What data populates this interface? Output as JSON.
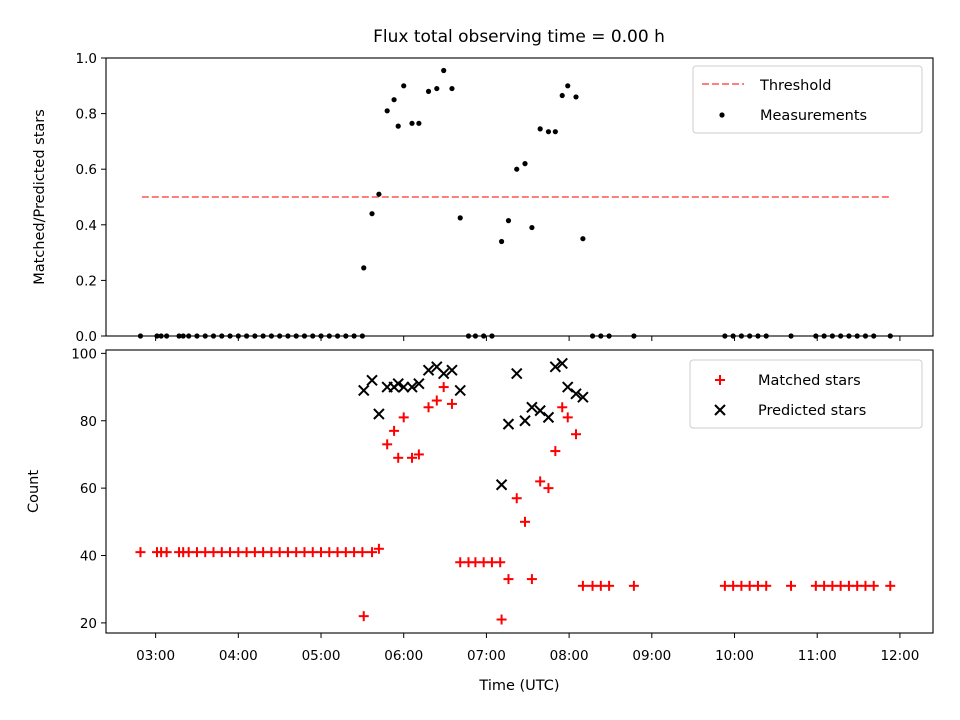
{
  "title": "Flux total observing time = 0.00 h",
  "chart_data": [
    {
      "type": "scatter",
      "ylabel": "Matched/Predicted stars",
      "ylim": [
        0,
        1
      ],
      "yticks": [
        "0.0",
        "0.2",
        "0.4",
        "0.6",
        "0.8",
        "1.0"
      ],
      "threshold": {
        "name": "Threshold",
        "value": 0.5,
        "color": "#ff7f7f",
        "x_range": [
          "02:50",
          "11:53"
        ]
      },
      "legend": [
        "Threshold",
        "Measurements"
      ],
      "legend_position": "upper right",
      "series": [
        {
          "name": "Measurements",
          "color": "#000000",
          "points": [
            [
              "02:49",
              0
            ],
            [
              "03:01",
              0
            ],
            [
              "03:04",
              0
            ],
            [
              "03:08",
              0
            ],
            [
              "03:17",
              0
            ],
            [
              "03:20",
              0
            ],
            [
              "03:24",
              0
            ],
            [
              "03:30",
              0
            ],
            [
              "03:36",
              0
            ],
            [
              "03:42",
              0
            ],
            [
              "03:48",
              0
            ],
            [
              "03:54",
              0
            ],
            [
              "04:00",
              0
            ],
            [
              "04:06",
              0
            ],
            [
              "04:12",
              0
            ],
            [
              "04:18",
              0
            ],
            [
              "04:24",
              0
            ],
            [
              "04:30",
              0
            ],
            [
              "04:36",
              0
            ],
            [
              "04:42",
              0
            ],
            [
              "04:48",
              0
            ],
            [
              "04:54",
              0
            ],
            [
              "05:00",
              0
            ],
            [
              "05:06",
              0
            ],
            [
              "05:12",
              0
            ],
            [
              "05:18",
              0
            ],
            [
              "05:24",
              0
            ],
            [
              "05:30",
              0
            ],
            [
              "05:31",
              0.245
            ],
            [
              "05:37",
              0.44
            ],
            [
              "05:42",
              0.51
            ],
            [
              "05:48",
              0.81
            ],
            [
              "05:53",
              0.85
            ],
            [
              "05:56",
              0.755
            ],
            [
              "06:00",
              0.9
            ],
            [
              "06:06",
              0.765
            ],
            [
              "06:11",
              0.765
            ],
            [
              "06:18",
              0.88
            ],
            [
              "06:24",
              0.89
            ],
            [
              "06:29",
              0.955
            ],
            [
              "06:35",
              0.89
            ],
            [
              "06:41",
              0.425
            ],
            [
              "06:47",
              0
            ],
            [
              "06:52",
              0
            ],
            [
              "06:58",
              0
            ],
            [
              "07:04",
              0
            ],
            [
              "07:11",
              0.34
            ],
            [
              "07:16",
              0.415
            ],
            [
              "07:22",
              0.6
            ],
            [
              "07:28",
              0.62
            ],
            [
              "07:33",
              0.39
            ],
            [
              "07:39",
              0.745
            ],
            [
              "07:45",
              0.735
            ],
            [
              "07:50",
              0.735
            ],
            [
              "07:55",
              0.865
            ],
            [
              "07:59",
              0.9
            ],
            [
              "08:05",
              0.86
            ],
            [
              "08:10",
              0.35
            ],
            [
              "08:17",
              0
            ],
            [
              "08:23",
              0
            ],
            [
              "08:29",
              0
            ],
            [
              "08:47",
              0
            ],
            [
              "09:53",
              0
            ],
            [
              "09:59",
              0
            ],
            [
              "10:05",
              0
            ],
            [
              "10:11",
              0
            ],
            [
              "10:17",
              0
            ],
            [
              "10:23",
              0
            ],
            [
              "10:41",
              0
            ],
            [
              "10:59",
              0
            ],
            [
              "11:05",
              0
            ],
            [
              "11:11",
              0
            ],
            [
              "11:17",
              0
            ],
            [
              "11:23",
              0
            ],
            [
              "11:29",
              0
            ],
            [
              "11:35",
              0
            ],
            [
              "11:41",
              0
            ],
            [
              "11:53",
              0
            ]
          ]
        }
      ]
    },
    {
      "type": "scatter",
      "xlabel": "Time (UTC)",
      "ylabel": "Count",
      "ylim": [
        17,
        101
      ],
      "yticks": [
        "20",
        "40",
        "60",
        "80",
        "100"
      ],
      "xticks": [
        "03:00",
        "04:00",
        "05:00",
        "06:00",
        "07:00",
        "08:00",
        "09:00",
        "10:00",
        "11:00",
        "12:00"
      ],
      "xlim": [
        "02:24",
        "12:24"
      ],
      "legend": [
        "Matched stars",
        "Predicted stars"
      ],
      "legend_position": "upper right",
      "series": [
        {
          "name": "Matched stars",
          "color": "#ff0000",
          "marker": "+",
          "points": [
            [
              "02:49",
              41
            ],
            [
              "03:01",
              41
            ],
            [
              "03:04",
              41
            ],
            [
              "03:08",
              41
            ],
            [
              "03:17",
              41
            ],
            [
              "03:20",
              41
            ],
            [
              "03:24",
              41
            ],
            [
              "03:30",
              41
            ],
            [
              "03:36",
              41
            ],
            [
              "03:42",
              41
            ],
            [
              "03:48",
              41
            ],
            [
              "03:54",
              41
            ],
            [
              "04:00",
              41
            ],
            [
              "04:06",
              41
            ],
            [
              "04:12",
              41
            ],
            [
              "04:18",
              41
            ],
            [
              "04:24",
              41
            ],
            [
              "04:30",
              41
            ],
            [
              "04:36",
              41
            ],
            [
              "04:42",
              41
            ],
            [
              "04:48",
              41
            ],
            [
              "04:54",
              41
            ],
            [
              "05:00",
              41
            ],
            [
              "05:06",
              41
            ],
            [
              "05:12",
              41
            ],
            [
              "05:18",
              41
            ],
            [
              "05:24",
              41
            ],
            [
              "05:30",
              41
            ],
            [
              "05:31",
              22
            ],
            [
              "05:37",
              41
            ],
            [
              "05:42",
              42
            ],
            [
              "05:48",
              73
            ],
            [
              "05:53",
              77
            ],
            [
              "05:56",
              69
            ],
            [
              "06:00",
              81
            ],
            [
              "06:06",
              69
            ],
            [
              "06:11",
              70
            ],
            [
              "06:18",
              84
            ],
            [
              "06:24",
              86
            ],
            [
              "06:29",
              90
            ],
            [
              "06:35",
              85
            ],
            [
              "06:41",
              38
            ],
            [
              "06:47",
              38
            ],
            [
              "06:52",
              38
            ],
            [
              "06:58",
              38
            ],
            [
              "07:04",
              38
            ],
            [
              "07:10",
              38
            ],
            [
              "07:11",
              21
            ],
            [
              "07:16",
              33
            ],
            [
              "07:22",
              57
            ],
            [
              "07:28",
              50
            ],
            [
              "07:33",
              33
            ],
            [
              "07:39",
              62
            ],
            [
              "07:45",
              60
            ],
            [
              "07:50",
              71
            ],
            [
              "07:55",
              84
            ],
            [
              "07:59",
              81
            ],
            [
              "08:05",
              76
            ],
            [
              "08:10",
              31
            ],
            [
              "08:17",
              31
            ],
            [
              "08:23",
              31
            ],
            [
              "08:29",
              31
            ],
            [
              "08:47",
              31
            ],
            [
              "09:53",
              31
            ],
            [
              "09:59",
              31
            ],
            [
              "10:05",
              31
            ],
            [
              "10:11",
              31
            ],
            [
              "10:17",
              31
            ],
            [
              "10:23",
              31
            ],
            [
              "10:41",
              31
            ],
            [
              "10:59",
              31
            ],
            [
              "11:05",
              31
            ],
            [
              "11:11",
              31
            ],
            [
              "11:17",
              31
            ],
            [
              "11:23",
              31
            ],
            [
              "11:29",
              31
            ],
            [
              "11:35",
              31
            ],
            [
              "11:41",
              31
            ],
            [
              "11:53",
              31
            ]
          ]
        },
        {
          "name": "Predicted stars",
          "color": "#000000",
          "marker": "x",
          "points": [
            [
              "05:31",
              89
            ],
            [
              "05:37",
              92
            ],
            [
              "05:42",
              82
            ],
            [
              "05:48",
              90
            ],
            [
              "05:53",
              90
            ],
            [
              "05:56",
              91
            ],
            [
              "06:00",
              90
            ],
            [
              "06:06",
              90
            ],
            [
              "06:11",
              91
            ],
            [
              "06:18",
              95
            ],
            [
              "06:24",
              96
            ],
            [
              "06:29",
              94
            ],
            [
              "06:35",
              95
            ],
            [
              "06:41",
              89
            ],
            [
              "07:11",
              61
            ],
            [
              "07:16",
              79
            ],
            [
              "07:22",
              94
            ],
            [
              "07:28",
              80
            ],
            [
              "07:33",
              84
            ],
            [
              "07:39",
              83
            ],
            [
              "07:45",
              81
            ],
            [
              "07:50",
              96
            ],
            [
              "07:55",
              97
            ],
            [
              "07:59",
              90
            ],
            [
              "08:05",
              88
            ],
            [
              "08:10",
              87
            ]
          ]
        }
      ]
    }
  ]
}
